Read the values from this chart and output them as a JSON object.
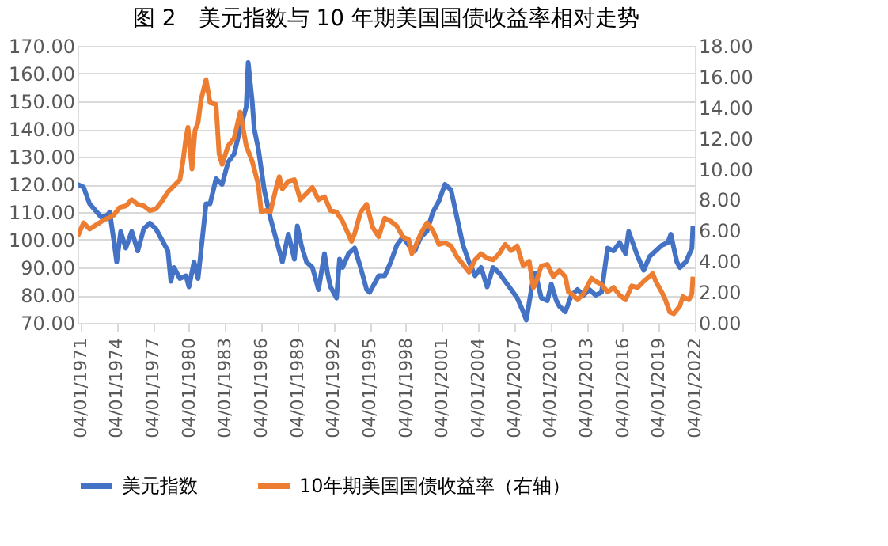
{
  "chart_data": {
    "type": "line",
    "title": "图 2　美元指数与 10 年期美国国债收益率相对走势",
    "xlim": [
      "1971-01",
      "2022-04"
    ],
    "xticks": [
      {
        "value": "1971-04-01",
        "label": "04/01/1971"
      },
      {
        "value": "1974-04-01",
        "label": "04/01/1974"
      },
      {
        "value": "1977-04-01",
        "label": "04/01/1977"
      },
      {
        "value": "1980-04-01",
        "label": "04/01/1980"
      },
      {
        "value": "1983-04-01",
        "label": "04/01/1983"
      },
      {
        "value": "1986-04-01",
        "label": "04/01/1986"
      },
      {
        "value": "1989-04-01",
        "label": "04/01/1989"
      },
      {
        "value": "1992-04-01",
        "label": "04/01/1992"
      },
      {
        "value": "1995-04-01",
        "label": "04/01/1995"
      },
      {
        "value": "1998-04-01",
        "label": "04/01/1998"
      },
      {
        "value": "2001-04-01",
        "label": "04/01/2001"
      },
      {
        "value": "2004-04-01",
        "label": "04/01/2004"
      },
      {
        "value": "2007-04-01",
        "label": "04/01/2007"
      },
      {
        "value": "2010-04-01",
        "label": "04/01/2010"
      },
      {
        "value": "2013-04-01",
        "label": "04/01/2013"
      },
      {
        "value": "2016-04-01",
        "label": "04/01/2016"
      },
      {
        "value": "2019-04-01",
        "label": "04/01/2019"
      },
      {
        "value": "2022-04-01",
        "label": "04/01/2022"
      }
    ],
    "ylim": [
      70,
      170
    ],
    "yticks": [
      {
        "value": 70,
        "label": "70.00"
      },
      {
        "value": 80,
        "label": "80.00"
      },
      {
        "value": 90,
        "label": "90.00"
      },
      {
        "value": 100,
        "label": "100.00"
      },
      {
        "value": 110,
        "label": "110.00"
      },
      {
        "value": 120,
        "label": "120.00"
      },
      {
        "value": 130,
        "label": "130.00"
      },
      {
        "value": 140,
        "label": "140.00"
      },
      {
        "value": 150,
        "label": "150.00"
      },
      {
        "value": 160,
        "label": "160.00"
      },
      {
        "value": 170,
        "label": "170.00"
      }
    ],
    "y2lim": [
      0,
      18
    ],
    "y2ticks": [
      {
        "value": 0,
        "label": "0.00"
      },
      {
        "value": 2,
        "label": "2.00"
      },
      {
        "value": 4,
        "label": "4.00"
      },
      {
        "value": 6,
        "label": "6.00"
      },
      {
        "value": 8,
        "label": "8.00"
      },
      {
        "value": 10,
        "label": "10.00"
      },
      {
        "value": 12,
        "label": "12.00"
      },
      {
        "value": 14,
        "label": "14.00"
      },
      {
        "value": 16,
        "label": "16.00"
      },
      {
        "value": 18,
        "label": "18.00"
      }
    ],
    "grid": "y",
    "legend": "bottom",
    "series": [
      {
        "name": "美元指数",
        "color": "#4472c4",
        "x": [
          "1971-01",
          "1971-07",
          "1972-01",
          "1973-01",
          "1973-07",
          "1973-09",
          "1974-01",
          "1974-04",
          "1974-08",
          "1975-01",
          "1975-07",
          "1976-01",
          "1976-07",
          "1977-01",
          "1977-07",
          "1978-01",
          "1978-07",
          "1978-10",
          "1979-01",
          "1979-07",
          "1980-01",
          "1980-04",
          "1980-09",
          "1981-01",
          "1981-04",
          "1981-09",
          "1982-01",
          "1982-07",
          "1983-01",
          "1983-07",
          "1984-01",
          "1984-07",
          "1985-01",
          "1985-03",
          "1985-07",
          "1985-09",
          "1986-01",
          "1986-07",
          "1987-01",
          "1987-07",
          "1988-01",
          "1988-07",
          "1989-01",
          "1989-04",
          "1989-08",
          "1990-01",
          "1990-07",
          "1991-01",
          "1991-07",
          "1991-10",
          "1992-01",
          "1992-07",
          "1992-10",
          "1993-01",
          "1993-07",
          "1994-01",
          "1994-07",
          "1995-01",
          "1995-04",
          "1996-01",
          "1996-07",
          "1997-01",
          "1997-07",
          "1998-01",
          "1998-07",
          "1999-01",
          "1999-07",
          "2000-01",
          "2000-07",
          "2001-01",
          "2001-07",
          "2002-01",
          "2002-07",
          "2003-01",
          "2003-07",
          "2004-01",
          "2004-07",
          "2005-01",
          "2005-07",
          "2006-01",
          "2006-07",
          "2007-01",
          "2007-07",
          "2008-01",
          "2008-04",
          "2008-10",
          "2009-01",
          "2009-07",
          "2010-01",
          "2010-05",
          "2010-10",
          "2011-01",
          "2011-07",
          "2012-01",
          "2012-07",
          "2013-01",
          "2013-07",
          "2014-01",
          "2014-07",
          "2015-01",
          "2015-07",
          "2016-01",
          "2016-07",
          "2016-10",
          "2017-07",
          "2018-01",
          "2018-07",
          "2019-01",
          "2019-07",
          "2020-01",
          "2020-04",
          "2020-10",
          "2021-01",
          "2021-07",
          "2022-01",
          "2022-02"
        ],
        "values": [
          120,
          119,
          113,
          108,
          109,
          110,
          100,
          92,
          103,
          97,
          103,
          96,
          104,
          106,
          104,
          100,
          96,
          85,
          90,
          86,
          87,
          83,
          92,
          86,
          96,
          113,
          113,
          122,
          120,
          128,
          131,
          140,
          148,
          164,
          150,
          140,
          133,
          118,
          108,
          100,
          92,
          102,
          93,
          105,
          98,
          92,
          90,
          82,
          95,
          88,
          83,
          79,
          93,
          90,
          95,
          97,
          90,
          82,
          81,
          87,
          87,
          92,
          98,
          101,
          98,
          96,
          101,
          103,
          110,
          114,
          120,
          118,
          108,
          98,
          92,
          87,
          90,
          83,
          90,
          88,
          85,
          82,
          79,
          74,
          71,
          84,
          88,
          79,
          78,
          84,
          78,
          76,
          74,
          80,
          82,
          80,
          82,
          80,
          81,
          97,
          96,
          99,
          95,
          103,
          94,
          89,
          94,
          96,
          98,
          99,
          102,
          92,
          90,
          92,
          97,
          105
        ]
      },
      {
        "name": "10年期美国国债收益率（右轴）",
        "color": "#ed7d31",
        "axis": "y2",
        "x": [
          "1971-01",
          "1971-07",
          "1972-01",
          "1973-01",
          "1974-01",
          "1974-07",
          "1975-01",
          "1975-07",
          "1976-01",
          "1976-07",
          "1977-01",
          "1977-07",
          "1978-01",
          "1978-07",
          "1979-01",
          "1979-07",
          "1979-10",
          "1980-01",
          "1980-03",
          "1980-07",
          "1980-10",
          "1981-01",
          "1981-04",
          "1981-09",
          "1982-01",
          "1982-07",
          "1982-10",
          "1983-01",
          "1983-07",
          "1984-01",
          "1984-07",
          "1985-01",
          "1985-07",
          "1986-01",
          "1986-04",
          "1986-08",
          "1987-01",
          "1987-07",
          "1987-10",
          "1988-01",
          "1988-07",
          "1989-01",
          "1989-07",
          "1990-01",
          "1990-07",
          "1991-01",
          "1991-07",
          "1992-01",
          "1992-07",
          "1993-01",
          "1993-10",
          "1994-01",
          "1994-07",
          "1995-01",
          "1995-07",
          "1996-01",
          "1996-07",
          "1997-01",
          "1997-07",
          "1998-01",
          "1998-07",
          "1998-10",
          "1999-01",
          "1999-07",
          "2000-01",
          "2000-07",
          "2001-01",
          "2001-07",
          "2002-01",
          "2002-07",
          "2003-01",
          "2003-07",
          "2004-01",
          "2004-07",
          "2005-01",
          "2005-07",
          "2006-01",
          "2006-07",
          "2007-01",
          "2007-07",
          "2008-01",
          "2008-07",
          "2008-11",
          "2009-01",
          "2009-07",
          "2010-01",
          "2010-07",
          "2011-01",
          "2011-07",
          "2011-10",
          "2012-01",
          "2012-07",
          "2013-01",
          "2013-09",
          "2014-01",
          "2014-07",
          "2015-01",
          "2015-07",
          "2016-01",
          "2016-07",
          "2017-01",
          "2017-07",
          "2018-01",
          "2018-10",
          "2019-01",
          "2019-07",
          "2019-10",
          "2020-03",
          "2020-07",
          "2021-01",
          "2021-04",
          "2021-10",
          "2022-01",
          "2022-02"
        ],
        "values": [
          5.6,
          6.5,
          6.1,
          6.6,
          7.0,
          7.5,
          7.6,
          8.0,
          7.7,
          7.6,
          7.3,
          7.4,
          7.9,
          8.5,
          8.9,
          9.3,
          10.5,
          12.0,
          12.7,
          10.0,
          12.5,
          13.0,
          14.5,
          15.8,
          14.3,
          14.2,
          11.0,
          10.3,
          11.5,
          12.0,
          13.7,
          11.5,
          10.5,
          9.0,
          7.2,
          7.3,
          7.2,
          8.8,
          9.5,
          8.7,
          9.2,
          9.3,
          8.0,
          8.4,
          8.8,
          8.0,
          8.2,
          7.3,
          7.2,
          6.6,
          5.3,
          5.8,
          7.2,
          7.7,
          6.2,
          5.6,
          6.8,
          6.6,
          6.3,
          5.6,
          5.4,
          4.5,
          4.9,
          5.8,
          6.5,
          6.0,
          5.1,
          5.2,
          5.0,
          4.3,
          3.8,
          3.3,
          4.1,
          4.5,
          4.2,
          4.1,
          4.5,
          5.1,
          4.7,
          5.0,
          3.7,
          4.0,
          2.3,
          2.5,
          3.7,
          3.8,
          3.0,
          3.4,
          3.0,
          2.0,
          1.9,
          1.5,
          1.9,
          2.9,
          2.7,
          2.5,
          2.0,
          2.3,
          1.8,
          1.5,
          2.4,
          2.3,
          2.7,
          3.2,
          2.7,
          2.0,
          1.6,
          0.7,
          0.6,
          1.1,
          1.7,
          1.5,
          1.9,
          3.0
        ]
      }
    ]
  }
}
